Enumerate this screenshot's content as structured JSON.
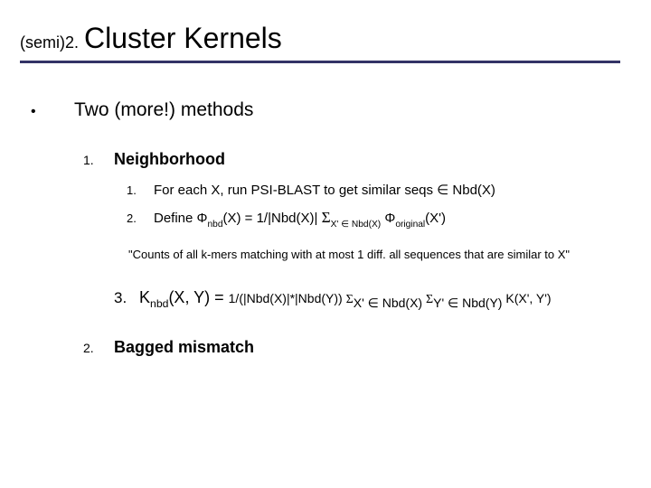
{
  "title": {
    "prefix": "(semi)2.",
    "main": "Cluster Kernels",
    "underline_color": "#333366"
  },
  "bullet": {
    "marker": "•",
    "text": "Two (more!) methods"
  },
  "item1": {
    "num": "1.",
    "text": "Neighborhood",
    "sub1": {
      "num": "1.",
      "text": "For each X, run PSI-BLAST to get similar seqs ∈ Nbd(X)"
    },
    "sub2": {
      "num": "2.",
      "prefix": "Define Φ",
      "nbd": "nbd",
      "mid1": "(X) = 1/|Nbd(X)| ",
      "sigma1": "Σ",
      "sum1sub": "X' ∈ Nbd(X)",
      "phi2": " Φ",
      "orig": "original",
      "tail": "(X')"
    }
  },
  "quote": "\"Counts of all k-mers matching with at most 1 diff. all sequences that are similar to X\"",
  "kline": {
    "num": "3.",
    "Kpre": "K",
    "Ksub": "nbd",
    "mid": "(X, Y) = ",
    "small1": "1/(|Nbd(X)|*|Nbd(Y)) ",
    "sigma1": "Σ",
    "s1sub": "X' ∈ Nbd(X)",
    "gap": " ",
    "sigma2": "Σ",
    "s2sub": "Y' ∈ Nbd(Y)",
    "tail": " K(X', Y')"
  },
  "item2": {
    "num": "2.",
    "text": "Bagged mismatch"
  },
  "style": {
    "background": "#ffffff",
    "text_color": "#000000",
    "title_fontsize": 32,
    "body_fontsize": 21,
    "list_fontsize": 18,
    "sublist_fontsize": 15,
    "quote_fontsize": 13
  }
}
